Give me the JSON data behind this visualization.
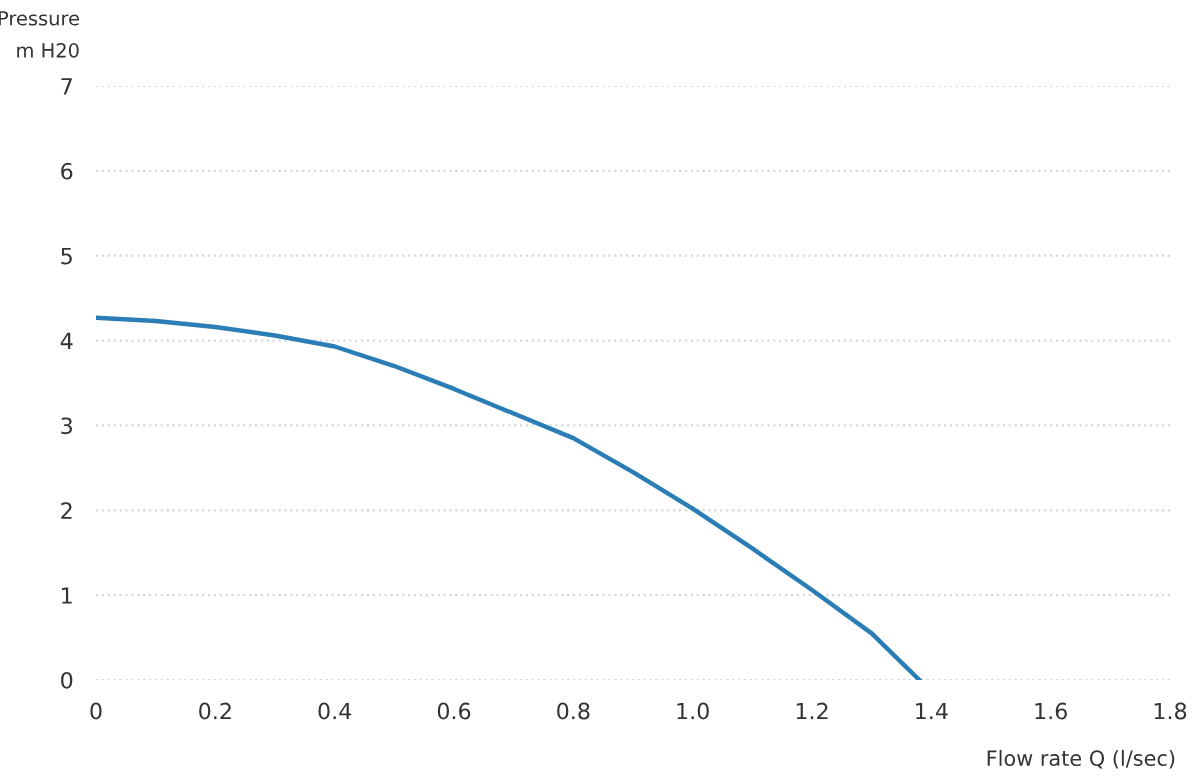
{
  "chart_data": {
    "type": "line",
    "xlabel": "Flow rate Q (l/sec)",
    "ylabel": "Pressure\nm H20",
    "series": [
      {
        "color": "#2a7db5",
        "x": [
          0,
          0.1,
          0.2,
          0.3,
          0.4,
          0.5,
          0.6,
          0.7,
          0.8,
          0.9,
          1.0,
          1.1,
          1.2,
          1.3,
          1.38
        ],
        "values": [
          4.27,
          4.23,
          4.16,
          4.06,
          3.93,
          3.7,
          3.43,
          3.14,
          2.85,
          2.45,
          2.02,
          1.55,
          1.06,
          0.55,
          0
        ]
      }
    ],
    "xlim": [
      0,
      1.8
    ],
    "ylim": [
      0,
      7
    ],
    "xticks": [
      0,
      {
        "value": 0.2,
        "label": "0.2"
      },
      {
        "value": 0.4,
        "label": "0.4"
      },
      {
        "value": 0.6,
        "label": "0.6"
      },
      {
        "value": 0.8,
        "label": "0.8"
      },
      {
        "value": 1.0,
        "label": "1.0"
      },
      {
        "value": 1.2,
        "label": "1.2"
      },
      {
        "value": 1.4,
        "label": "1.4"
      },
      {
        "value": 1.6,
        "label": "1.6"
      },
      {
        "value": 1.8,
        "label": "1.8"
      }
    ],
    "yticks": [
      0,
      1,
      2,
      3,
      4,
      5,
      6,
      7
    ],
    "grid": "y",
    "line_style": "solid",
    "marker": "none"
  }
}
